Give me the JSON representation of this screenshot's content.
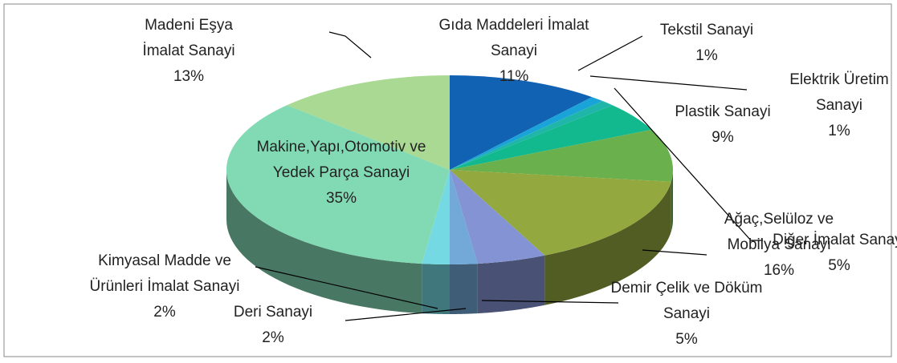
{
  "chart_data": {
    "type": "pie",
    "categories": [
      "Gıda Maddeleri İmalat Sanayi",
      "Tekstil Sanayi",
      "Elektrik Üretim Sanayi",
      "Diğer İmalat Sanayi",
      "Plastik Sanayi",
      "Ağaç,Selüloz ve Mobilya Sanayi",
      "Demir Çelik ve Döküm Sanayi",
      "Deri Sanayi",
      "Kimyasal Madde ve Ürünleri İmalat Sanayi",
      "Makine,Yapı,Otomotiv ve Yedek Parça Sanayi",
      "Madeni Eşya İmalat Sanayi"
    ],
    "values": [
      11,
      1,
      1,
      5,
      9,
      16,
      5,
      2,
      2,
      35,
      13
    ],
    "value_labels": [
      "11%",
      "1%",
      "1%",
      "5%",
      "9%",
      "16%",
      "5%",
      "2%",
      "2%",
      "35%",
      "13%"
    ],
    "colors": [
      "#1262b3",
      "#1aa3d9",
      "#1fb5a8",
      "#12b98e",
      "#6ab04c",
      "#93a93f",
      "#8493d3",
      "#72a9d8",
      "#74d9e3",
      "#82dab4",
      "#a9d993"
    ]
  }
}
